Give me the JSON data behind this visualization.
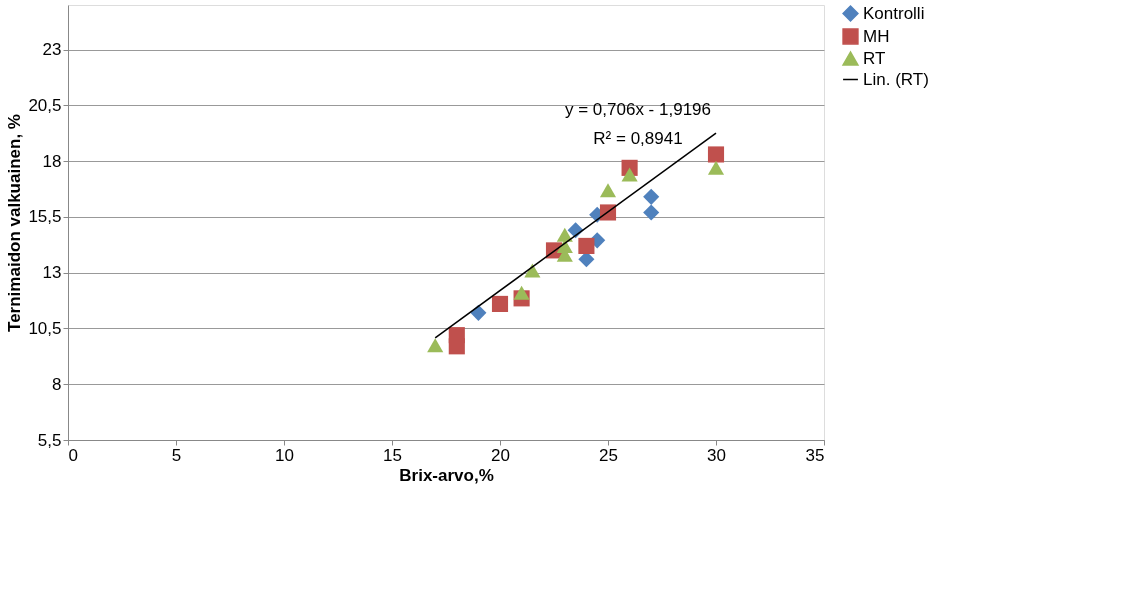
{
  "chart_data": {
    "type": "scatter",
    "xlabel": "Brix-arvo,%",
    "ylabel": "Ternimaidon valkuainen, %",
    "xlim": [
      0,
      35
    ],
    "xticks": [
      0,
      5,
      10,
      15,
      20,
      25,
      30,
      35
    ],
    "ylim": [
      5.5,
      25
    ],
    "yticks": [
      {
        "value": 5.5,
        "label": "5,5"
      },
      {
        "value": 8,
        "label": "8"
      },
      {
        "value": 10.5,
        "label": "10,5"
      },
      {
        "value": 13,
        "label": "13"
      },
      {
        "value": 15.5,
        "label": "15,5"
      },
      {
        "value": 18,
        "label": "18"
      },
      {
        "value": 20.5,
        "label": "20,5"
      },
      {
        "value": 23,
        "label": "23"
      }
    ],
    "grid": "y",
    "legend": "right",
    "series": [
      {
        "name": "Kontrolli",
        "color": "#4f81bd",
        "marker": "diamond",
        "x": [
          19,
          23.5,
          24.5,
          24.5,
          24,
          27,
          27
        ],
        "values": [
          11.2,
          14.9,
          15.6,
          14.45,
          13.6,
          16.4,
          15.7
        ]
      },
      {
        "name": "MH",
        "color": "#c0504d",
        "marker": "square",
        "x": [
          18,
          18,
          20,
          21,
          22.5,
          24,
          25,
          26,
          30
        ],
        "values": [
          10.2,
          9.7,
          11.6,
          11.85,
          14.0,
          14.2,
          15.7,
          17.7,
          18.3
        ]
      },
      {
        "name": "RT",
        "color": "#9bbb59",
        "marker": "triangle",
        "x": [
          17,
          21,
          21.5,
          23,
          23,
          23,
          25,
          26,
          30
        ],
        "values": [
          9.75,
          12.1,
          13.1,
          13.8,
          14.2,
          14.7,
          16.7,
          17.4,
          17.7
        ]
      },
      {
        "name": "Lin. (RT)",
        "color": "#000000",
        "type": "line",
        "marker": "none",
        "x": [
          17,
          30
        ],
        "values": [
          10.08,
          19.26
        ]
      }
    ],
    "annotations": [
      "y = 0,706x - 1,9196",
      "R² = 0,8941"
    ]
  }
}
